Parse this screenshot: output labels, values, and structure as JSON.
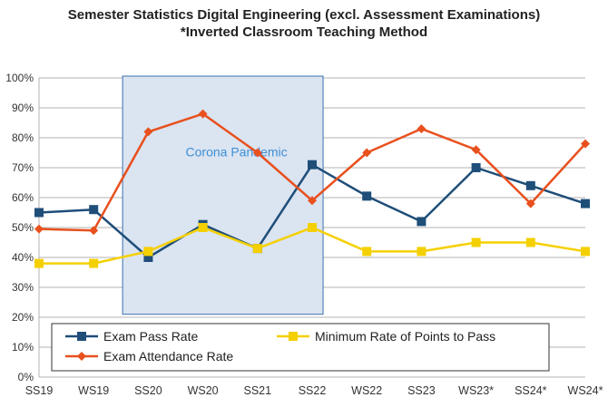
{
  "chart_data": {
    "type": "line",
    "title": "Semester Statistics Digital Engineering (excl. Assessment Examinations)",
    "subtitle": "*Inverted Classroom Teaching Method",
    "xlabel": "",
    "ylabel": "",
    "ylim": [
      0,
      100
    ],
    "yticks": [
      "0%",
      "10%",
      "20%",
      "30%",
      "40%",
      "50%",
      "60%",
      "70%",
      "80%",
      "90%",
      "100%"
    ],
    "categories": [
      "SS19",
      "WS19",
      "SS20",
      "WS20",
      "SS21",
      "SS22",
      "WS22",
      "SS23",
      "WS23*",
      "SS24*",
      "WS24*"
    ],
    "grid": true,
    "legend_position": "bottom-inside",
    "series": [
      {
        "name": "Exam Pass Rate",
        "color": "#1f4e79",
        "marker": "square",
        "values": [
          55,
          56,
          40,
          51,
          43,
          71,
          60.5,
          52,
          70,
          64,
          58
        ]
      },
      {
        "name": "Minimum Rate of Points to Pass",
        "color": "#f5d000",
        "marker": "square",
        "values": [
          38,
          38,
          42,
          50,
          43,
          50,
          42,
          42,
          45,
          45,
          42
        ]
      },
      {
        "name": "Exam Attendance Rate",
        "color": "#e8501e",
        "marker": "diamond",
        "values": [
          49.5,
          49,
          82,
          88,
          75,
          59,
          75,
          83,
          76,
          58,
          78
        ]
      }
    ],
    "annotations": [
      {
        "text": "Corona Pandemic",
        "x_range": [
          "SS20",
          "SS22"
        ],
        "color": "#3c8fd6",
        "fill": "#dbe4f1"
      }
    ]
  }
}
